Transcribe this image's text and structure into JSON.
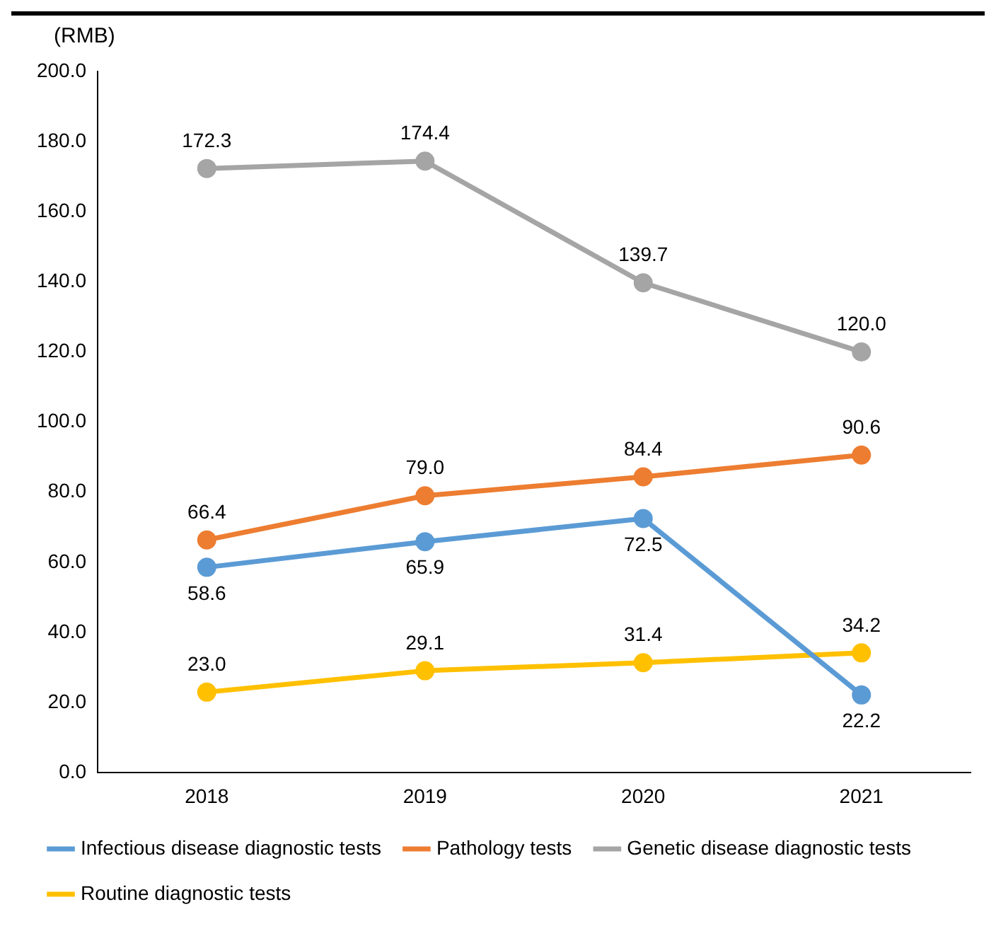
{
  "chart_data": {
    "type": "line",
    "ylabel": "(RMB)",
    "categories": [
      "2018",
      "2019",
      "2020",
      "2021"
    ],
    "series": [
      {
        "name": "Infectious disease diagnostic tests",
        "color": "#5b9bd5",
        "values": [
          58.6,
          65.9,
          72.5,
          22.2
        ],
        "value_labels": [
          "58.6",
          "65.9",
          "72.5",
          "22.2"
        ]
      },
      {
        "name": "Pathology tests",
        "color": "#ed7d31",
        "values": [
          66.4,
          79.0,
          84.4,
          90.6
        ],
        "value_labels": [
          "66.4",
          "79.0",
          "84.4",
          "90.6"
        ]
      },
      {
        "name": "Genetic disease diagnostic tests",
        "color": "#a5a5a5",
        "values": [
          172.3,
          174.4,
          139.7,
          120.0
        ],
        "value_labels": [
          "172.3",
          "174.4",
          "139.7",
          "120.0"
        ]
      },
      {
        "name": "Routine diagnostic tests",
        "color": "#ffc000",
        "values": [
          23.0,
          29.1,
          31.4,
          34.2
        ],
        "value_labels": [
          "23.0",
          "29.1",
          "31.4",
          "34.2"
        ]
      }
    ],
    "ylim": [
      0,
      200
    ],
    "yticks": [
      {
        "value": 0,
        "label": "0.0"
      },
      {
        "value": 20,
        "label": "20.0"
      },
      {
        "value": 40,
        "label": "40.0"
      },
      {
        "value": 60,
        "label": "60.0"
      },
      {
        "value": 80,
        "label": "80.0"
      },
      {
        "value": 100,
        "label": "100.0"
      },
      {
        "value": 120,
        "label": "120.0"
      },
      {
        "value": 140,
        "label": "140.0"
      },
      {
        "value": 160,
        "label": "160.0"
      },
      {
        "value": 180,
        "label": "180.0"
      },
      {
        "value": 200,
        "label": "200.0"
      }
    ],
    "grid": false,
    "legend": "bottom",
    "marker": "circle",
    "line_style": "solid"
  }
}
